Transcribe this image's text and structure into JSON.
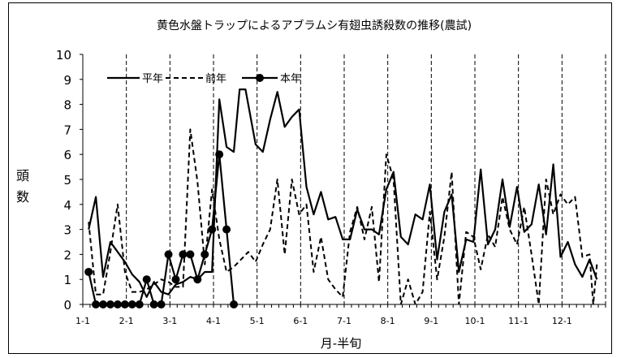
{
  "chart_data": {
    "type": "line",
    "title": "黄色水盤トラップによるアブラムシ有翅虫誘殺数の推移(農試)",
    "xlabel": "月-半旬",
    "ylabel": "頭数",
    "ylim": [
      0,
      10
    ],
    "yticks": [
      0,
      1,
      2,
      3,
      4,
      5,
      6,
      7,
      8,
      9,
      10
    ],
    "xlim": [
      0,
      72
    ],
    "x_tick_labels": [
      {
        "pos": 0,
        "label": "1-1"
      },
      {
        "pos": 6,
        "label": "2-1"
      },
      {
        "pos": 12,
        "label": "3-1"
      },
      {
        "pos": 18,
        "label": "4-1"
      },
      {
        "pos": 24,
        "label": "5-1"
      },
      {
        "pos": 30,
        "label": "6-1"
      },
      {
        "pos": 36,
        "label": "7-1"
      },
      {
        "pos": 42,
        "label": "8-1"
      },
      {
        "pos": 48,
        "label": "9-1"
      },
      {
        "pos": 54,
        "label": "10-1"
      },
      {
        "pos": 60,
        "label": "11-1"
      },
      {
        "pos": 66,
        "label": "12-1"
      }
    ],
    "month_boundaries": [
      6,
      12,
      18,
      24,
      30,
      36,
      42,
      48,
      54,
      60,
      66,
      72
    ],
    "legend_position": "top-left",
    "series": [
      {
        "name": "平年",
        "style": "solid",
        "values": [
          {
            "x": 0.8,
            "y": 3.0
          },
          {
            "x": 1.8,
            "y": 4.3
          },
          {
            "x": 2.8,
            "y": 1.1
          },
          {
            "x": 3.8,
            "y": 2.5
          },
          {
            "x": 4.8,
            "y": 2.1
          },
          {
            "x": 5.8,
            "y": 1.7
          },
          {
            "x": 6.8,
            "y": 1.2
          },
          {
            "x": 7.8,
            "y": 0.9
          },
          {
            "x": 8.8,
            "y": 0.3
          },
          {
            "x": 9.8,
            "y": 0.9
          },
          {
            "x": 10.8,
            "y": 0.5
          },
          {
            "x": 11.8,
            "y": 0.4
          },
          {
            "x": 12.8,
            "y": 0.8
          },
          {
            "x": 13.8,
            "y": 0.9
          },
          {
            "x": 14.8,
            "y": 1.1
          },
          {
            "x": 15.8,
            "y": 1.0
          },
          {
            "x": 16.8,
            "y": 1.3
          },
          {
            "x": 17.8,
            "y": 1.3
          },
          {
            "x": 18.8,
            "y": 8.2
          },
          {
            "x": 19.8,
            "y": 6.3
          },
          {
            "x": 20.8,
            "y": 6.1
          },
          {
            "x": 21.6,
            "y": 8.6
          },
          {
            "x": 22.4,
            "y": 8.6
          },
          {
            "x": 23.8,
            "y": 6.4
          },
          {
            "x": 24.8,
            "y": 6.1
          },
          {
            "x": 25.8,
            "y": 7.4
          },
          {
            "x": 26.8,
            "y": 8.5
          },
          {
            "x": 27.8,
            "y": 7.1
          },
          {
            "x": 28.8,
            "y": 7.5
          },
          {
            "x": 29.8,
            "y": 7.8
          },
          {
            "x": 30.8,
            "y": 4.7
          },
          {
            "x": 31.8,
            "y": 3.6
          },
          {
            "x": 32.8,
            "y": 4.5
          },
          {
            "x": 33.8,
            "y": 3.4
          },
          {
            "x": 34.8,
            "y": 3.5
          },
          {
            "x": 35.8,
            "y": 2.6
          },
          {
            "x": 36.8,
            "y": 2.6
          },
          {
            "x": 37.8,
            "y": 3.8
          },
          {
            "x": 38.8,
            "y": 3.0
          },
          {
            "x": 39.8,
            "y": 3.0
          },
          {
            "x": 40.8,
            "y": 2.8
          },
          {
            "x": 41.8,
            "y": 4.6
          },
          {
            "x": 42.8,
            "y": 5.3
          },
          {
            "x": 43.8,
            "y": 2.7
          },
          {
            "x": 44.8,
            "y": 2.4
          },
          {
            "x": 45.8,
            "y": 3.6
          },
          {
            "x": 46.8,
            "y": 3.4
          },
          {
            "x": 47.8,
            "y": 4.8
          },
          {
            "x": 48.8,
            "y": 1.8
          },
          {
            "x": 49.8,
            "y": 3.7
          },
          {
            "x": 50.8,
            "y": 4.4
          },
          {
            "x": 51.8,
            "y": 1.3
          },
          {
            "x": 52.8,
            "y": 2.6
          },
          {
            "x": 53.8,
            "y": 2.5
          },
          {
            "x": 54.8,
            "y": 5.4
          },
          {
            "x": 55.8,
            "y": 2.4
          },
          {
            "x": 56.8,
            "y": 3.0
          },
          {
            "x": 57.8,
            "y": 5.0
          },
          {
            "x": 58.8,
            "y": 3.1
          },
          {
            "x": 59.8,
            "y": 4.7
          },
          {
            "x": 60.8,
            "y": 2.9
          },
          {
            "x": 61.8,
            "y": 3.2
          },
          {
            "x": 62.8,
            "y": 4.8
          },
          {
            "x": 63.8,
            "y": 2.8
          },
          {
            "x": 64.8,
            "y": 5.6
          },
          {
            "x": 65.8,
            "y": 1.9
          },
          {
            "x": 66.8,
            "y": 2.5
          },
          {
            "x": 67.8,
            "y": 1.6
          },
          {
            "x": 68.8,
            "y": 1.1
          },
          {
            "x": 69.8,
            "y": 1.8
          },
          {
            "x": 70.8,
            "y": 1.0
          }
        ]
      },
      {
        "name": "前年",
        "style": "dashed",
        "values": [
          {
            "x": 0.8,
            "y": 3.3
          },
          {
            "x": 1.8,
            "y": 0.4
          },
          {
            "x": 2.8,
            "y": 0.4
          },
          {
            "x": 3.8,
            "y": 2.1
          },
          {
            "x": 4.8,
            "y": 4.0
          },
          {
            "x": 5.8,
            "y": 1.3
          },
          {
            "x": 6.8,
            "y": 0.5
          },
          {
            "x": 7.8,
            "y": 0.5
          },
          {
            "x": 8.8,
            "y": 0.6
          },
          {
            "x": 9.8,
            "y": 0.8
          },
          {
            "x": 10.8,
            "y": 1.0
          },
          {
            "x": 11.8,
            "y": 0.9
          },
          {
            "x": 12.8,
            "y": 0.7
          },
          {
            "x": 13.8,
            "y": 0.7
          },
          {
            "x": 14.8,
            "y": 7.0
          },
          {
            "x": 15.8,
            "y": 4.9
          },
          {
            "x": 16.8,
            "y": 1.6
          },
          {
            "x": 17.8,
            "y": 4.6
          },
          {
            "x": 18.8,
            "y": 2.6
          },
          {
            "x": 19.8,
            "y": 1.3
          },
          {
            "x": 20.8,
            "y": 1.5
          },
          {
            "x": 21.8,
            "y": 1.8
          },
          {
            "x": 22.8,
            "y": 2.1
          },
          {
            "x": 23.8,
            "y": 1.7
          },
          {
            "x": 24.8,
            "y": 2.4
          },
          {
            "x": 25.8,
            "y": 3.0
          },
          {
            "x": 26.8,
            "y": 5.0
          },
          {
            "x": 27.8,
            "y": 2.0
          },
          {
            "x": 28.8,
            "y": 5.0
          },
          {
            "x": 29.8,
            "y": 3.6
          },
          {
            "x": 30.8,
            "y": 4.0
          },
          {
            "x": 31.8,
            "y": 1.3
          },
          {
            "x": 32.8,
            "y": 2.7
          },
          {
            "x": 33.8,
            "y": 1.0
          },
          {
            "x": 34.8,
            "y": 0.6
          },
          {
            "x": 35.8,
            "y": 0.3
          },
          {
            "x": 36.8,
            "y": 2.9
          },
          {
            "x": 37.8,
            "y": 3.9
          },
          {
            "x": 38.8,
            "y": 2.6
          },
          {
            "x": 39.8,
            "y": 3.9
          },
          {
            "x": 40.8,
            "y": 0.9
          },
          {
            "x": 41.8,
            "y": 6.0
          },
          {
            "x": 42.8,
            "y": 5.0
          },
          {
            "x": 43.8,
            "y": 0.0
          },
          {
            "x": 44.8,
            "y": 1.0
          },
          {
            "x": 45.8,
            "y": 0.0
          },
          {
            "x": 46.8,
            "y": 0.5
          },
          {
            "x": 47.8,
            "y": 3.7
          },
          {
            "x": 48.8,
            "y": 1.0
          },
          {
            "x": 49.8,
            "y": 2.7
          },
          {
            "x": 50.8,
            "y": 5.3
          },
          {
            "x": 51.8,
            "y": 0.0
          },
          {
            "x": 52.8,
            "y": 2.9
          },
          {
            "x": 53.8,
            "y": 2.7
          },
          {
            "x": 54.8,
            "y": 1.4
          },
          {
            "x": 55.8,
            "y": 2.8
          },
          {
            "x": 56.8,
            "y": 2.3
          },
          {
            "x": 57.8,
            "y": 4.3
          },
          {
            "x": 58.8,
            "y": 3.0
          },
          {
            "x": 59.8,
            "y": 2.4
          },
          {
            "x": 60.8,
            "y": 3.9
          },
          {
            "x": 61.8,
            "y": 2.0
          },
          {
            "x": 62.8,
            "y": 0.0
          },
          {
            "x": 63.8,
            "y": 5.0
          },
          {
            "x": 64.8,
            "y": 3.6
          },
          {
            "x": 65.8,
            "y": 4.4
          },
          {
            "x": 66.8,
            "y": 4.0
          },
          {
            "x": 67.8,
            "y": 4.3
          },
          {
            "x": 68.8,
            "y": 1.9
          },
          {
            "x": 69.8,
            "y": 2.0
          },
          {
            "x": 70.3,
            "y": 0.0
          },
          {
            "x": 70.8,
            "y": 1.6
          }
        ]
      },
      {
        "name": "本年",
        "style": "solid-marker",
        "values": [
          {
            "x": 0.8,
            "y": 1.3
          },
          {
            "x": 1.8,
            "y": 0.0
          },
          {
            "x": 2.8,
            "y": 0.0
          },
          {
            "x": 3.8,
            "y": 0.0
          },
          {
            "x": 4.8,
            "y": 0.0
          },
          {
            "x": 5.8,
            "y": 0.0
          },
          {
            "x": 6.8,
            "y": 0.0
          },
          {
            "x": 7.8,
            "y": 0.0
          },
          {
            "x": 8.8,
            "y": 1.0
          },
          {
            "x": 9.8,
            "y": 0.0
          },
          {
            "x": 10.8,
            "y": 0.0
          },
          {
            "x": 11.8,
            "y": 2.0
          },
          {
            "x": 12.8,
            "y": 1.0
          },
          {
            "x": 13.8,
            "y": 2.0
          },
          {
            "x": 14.8,
            "y": 2.0
          },
          {
            "x": 15.8,
            "y": 1.0
          },
          {
            "x": 16.8,
            "y": 2.0
          },
          {
            "x": 17.8,
            "y": 3.0
          },
          {
            "x": 18.8,
            "y": 6.0
          },
          {
            "x": 19.8,
            "y": 3.0
          },
          {
            "x": 20.8,
            "y": 0.0
          }
        ]
      }
    ]
  }
}
